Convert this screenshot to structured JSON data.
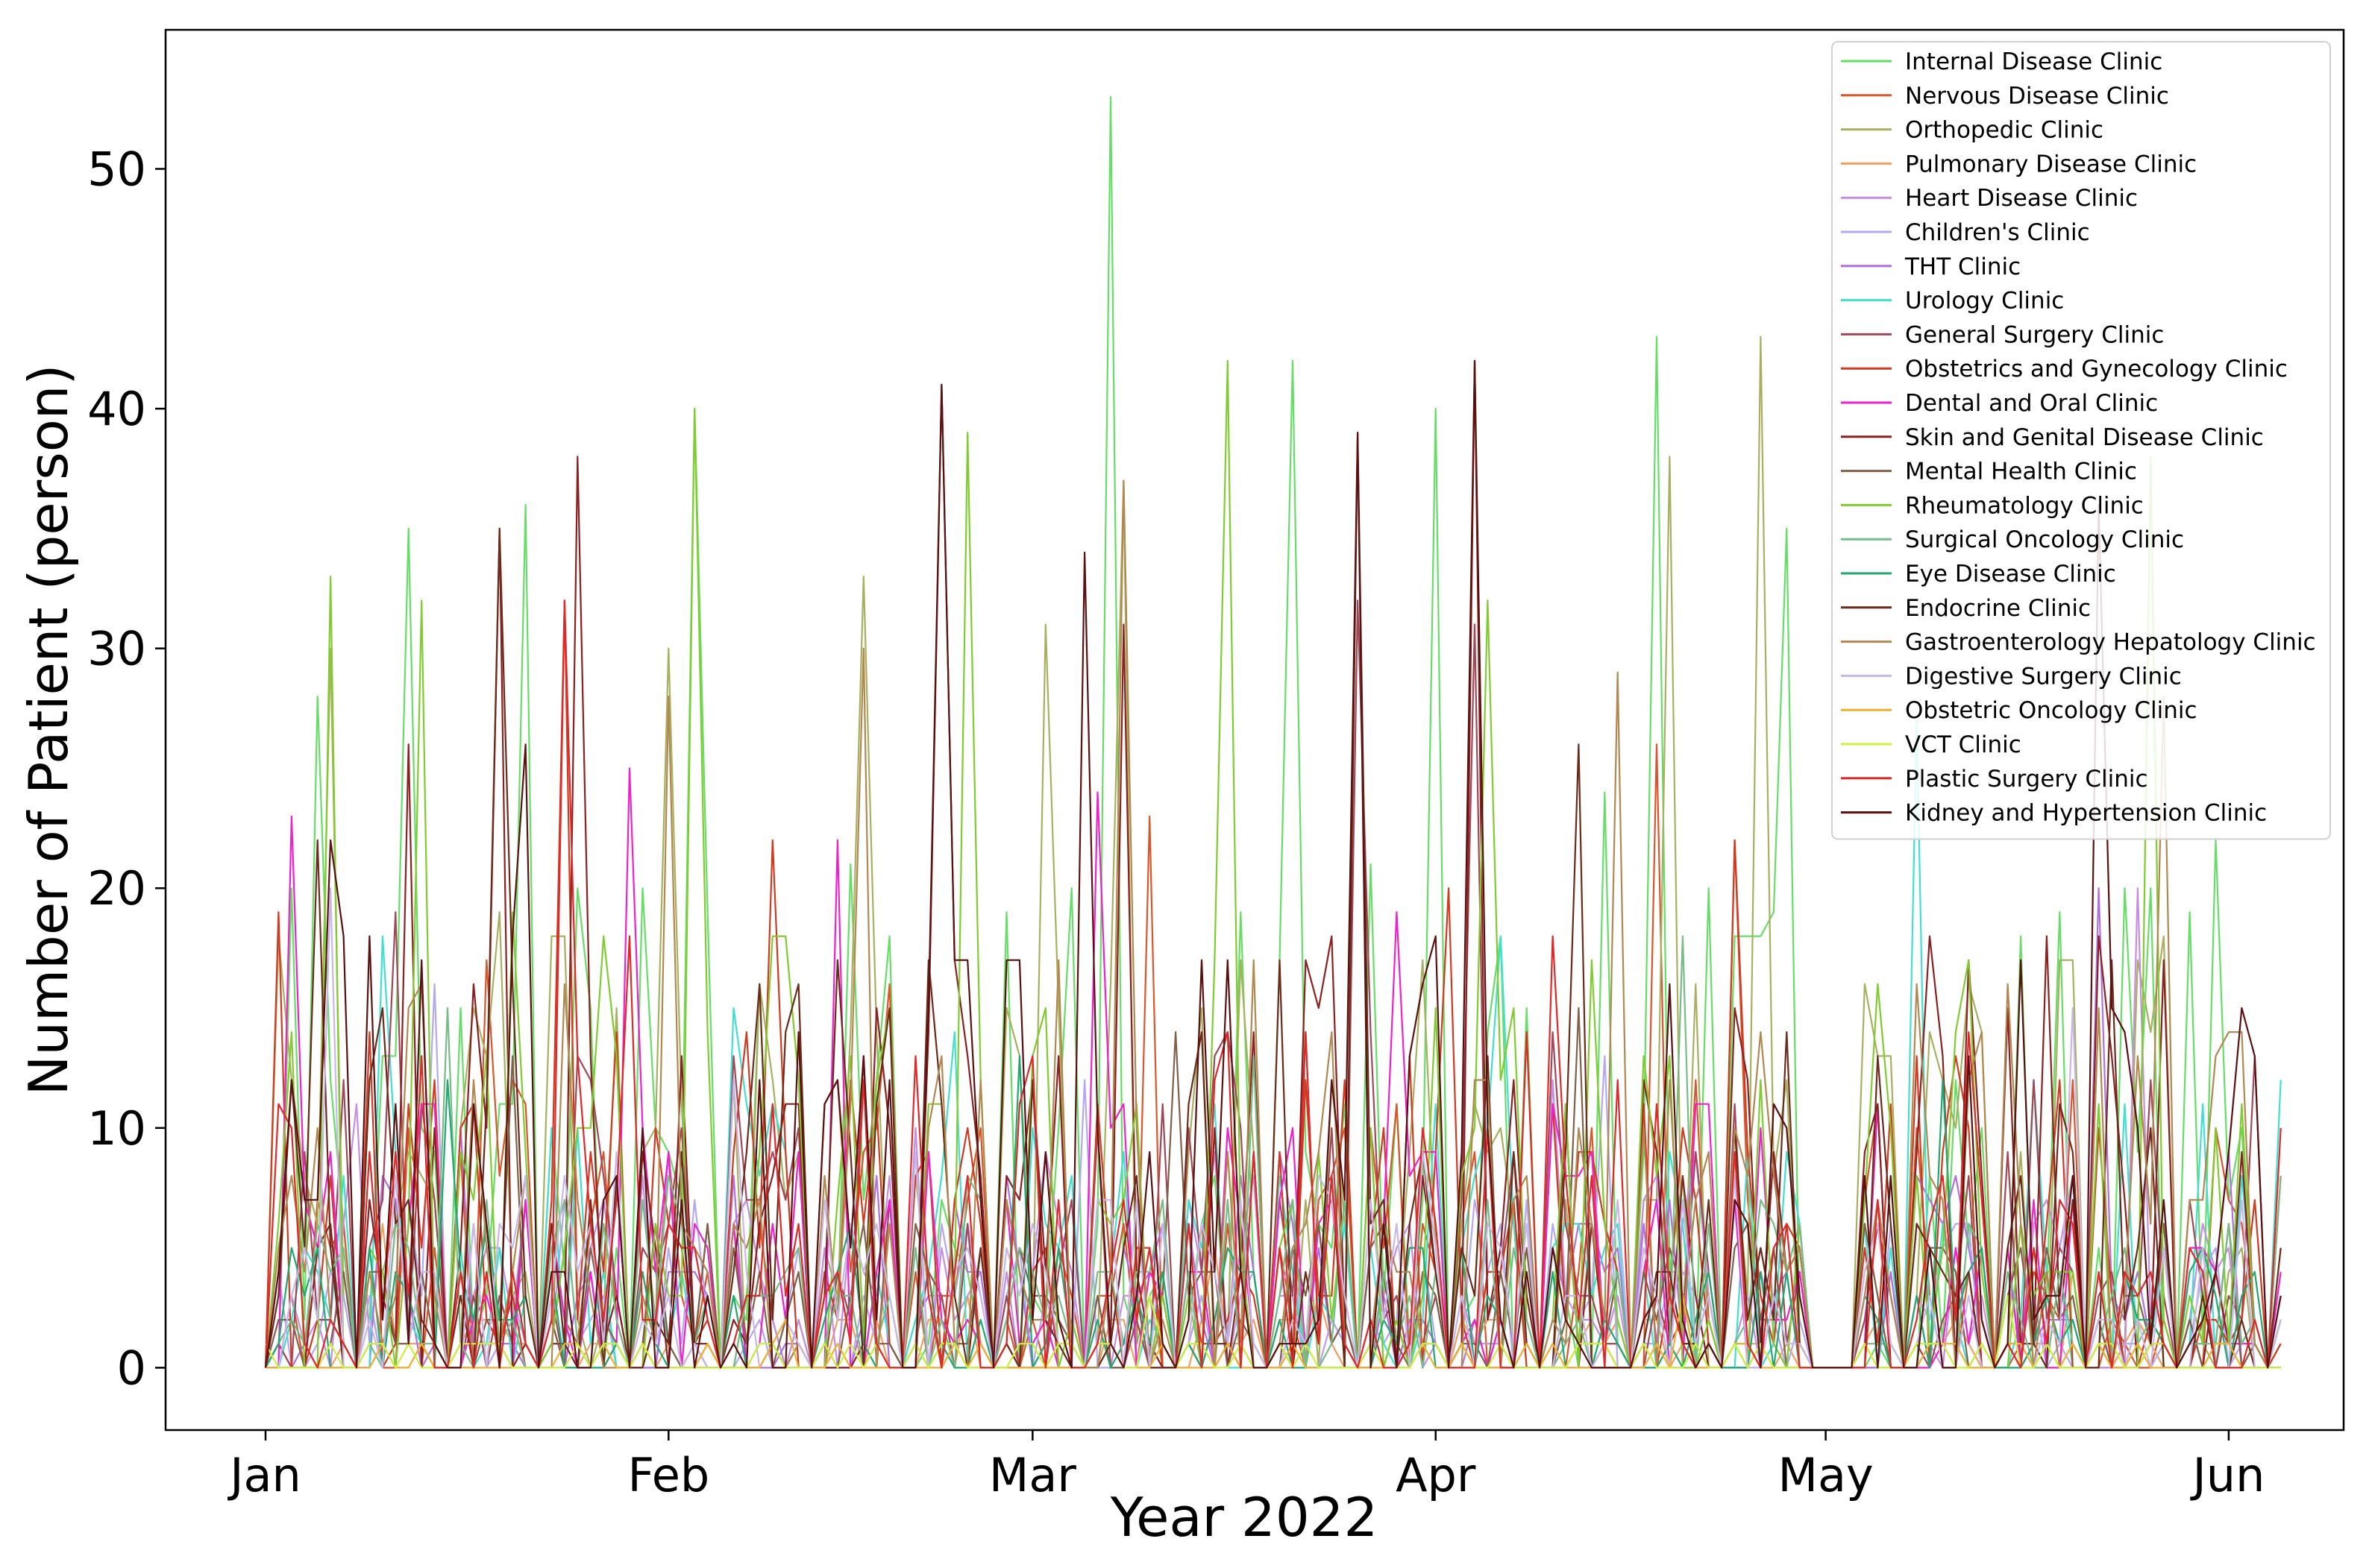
{
  "chart_data": {
    "type": "line",
    "title": "",
    "xlabel": "Year 2022",
    "ylabel": "Number of Patient (person)",
    "x_range": [
      "2022-01-01",
      "2022-06-05"
    ],
    "ylim": [
      -2.6,
      55.8
    ],
    "x_ticks": [
      {
        "date": "2022-01-01",
        "label": "Jan"
      },
      {
        "date": "2022-02-01",
        "label": "Feb"
      },
      {
        "date": "2022-03-01",
        "label": "Mar"
      },
      {
        "date": "2022-04-01",
        "label": "Apr"
      },
      {
        "date": "2022-05-01",
        "label": "May"
      },
      {
        "date": "2022-06-01",
        "label": "Jun"
      }
    ],
    "y_ticks": [
      0,
      10,
      20,
      30,
      40,
      50
    ],
    "grid": false,
    "legend_position": "top-right",
    "series": [
      {
        "name": "Internal Disease Clinic",
        "color": "#66dd66",
        "peaks": [
          [
            "2022-01-05",
            28
          ],
          [
            "2022-01-12",
            35
          ],
          [
            "2022-01-21",
            36
          ],
          [
            "2022-02-03",
            40
          ],
          [
            "2022-03-07",
            53
          ],
          [
            "2022-03-21",
            42
          ],
          [
            "2022-04-01",
            40
          ],
          [
            "2022-04-18",
            43
          ],
          [
            "2022-04-28",
            35
          ]
        ],
        "max": 53
      },
      {
        "name": "Nervous Disease Clinic",
        "color": "#d9552b",
        "peaks": [
          [
            "2022-01-18",
            17
          ],
          [
            "2022-02-18",
            16
          ],
          [
            "2022-03-10",
            23
          ],
          [
            "2022-04-18",
            26
          ],
          [
            "2022-04-24",
            22
          ]
        ],
        "max": 26
      },
      {
        "name": "Orthopedic Clinic",
        "color": "#a8b060",
        "peaks": [
          [
            "2022-01-06",
            30
          ],
          [
            "2022-02-01",
            30
          ],
          [
            "2022-02-16",
            33
          ],
          [
            "2022-03-02",
            31
          ],
          [
            "2022-03-08",
            37
          ],
          [
            "2022-04-19",
            38
          ],
          [
            "2022-04-26",
            43
          ],
          [
            "2022-05-05",
            13
          ]
        ],
        "max": 43
      },
      {
        "name": "Pulmonary Disease Clinic",
        "color": "#f0a060",
        "peaks": [
          [
            "2022-01-10",
            6
          ],
          [
            "2022-03-15",
            5
          ],
          [
            "2022-05-20",
            4
          ]
        ],
        "max": 6
      },
      {
        "name": "Heart Disease Clinic",
        "color": "#c78ee0",
        "peaks": [
          [
            "2022-01-08",
            11
          ],
          [
            "2022-02-20",
            10
          ],
          [
            "2022-04-10",
            12
          ],
          [
            "2022-05-25",
            20
          ]
        ],
        "max": 20
      },
      {
        "name": "Children's Clinic",
        "color": "#b5a8f0",
        "peaks": [
          [
            "2022-01-14",
            16
          ],
          [
            "2022-03-05",
            12
          ],
          [
            "2022-04-14",
            13
          ]
        ],
        "max": 16
      },
      {
        "name": "THT Clinic",
        "color": "#b070e0",
        "peaks": [
          [
            "2022-01-16",
            10
          ],
          [
            "2022-03-20",
            9
          ],
          [
            "2022-05-22",
            20
          ]
        ],
        "max": 20
      },
      {
        "name": "Urology Clinic",
        "color": "#40e0d0",
        "peaks": [
          [
            "2022-01-10",
            18
          ],
          [
            "2022-02-06",
            15
          ],
          [
            "2022-02-23",
            14
          ],
          [
            "2022-04-06",
            18
          ],
          [
            "2022-05-08",
            27
          ]
        ],
        "max": 27
      },
      {
        "name": "General Surgery Clinic",
        "color": "#a04858",
        "peaks": [
          [
            "2022-01-11",
            19
          ],
          [
            "2022-03-26",
            32
          ],
          [
            "2022-04-04",
            31
          ]
        ],
        "max": 32
      },
      {
        "name": "Obstetrics and Gynecology Clinic",
        "color": "#d03a20",
        "peaks": [
          [
            "2022-01-02",
            19
          ],
          [
            "2022-01-24",
            32
          ],
          [
            "2022-02-09",
            22
          ],
          [
            "2022-04-02",
            20
          ],
          [
            "2022-04-24",
            22
          ]
        ],
        "max": 32
      },
      {
        "name": "Dental and Oral Clinic",
        "color": "#ee22cc",
        "peaks": [
          [
            "2022-01-03",
            23
          ],
          [
            "2022-01-29",
            25
          ],
          [
            "2022-02-14",
            22
          ],
          [
            "2022-03-06",
            24
          ],
          [
            "2022-03-29",
            19
          ]
        ],
        "max": 25
      },
      {
        "name": "Skin and Genital Disease Clinic",
        "color": "#8b2020",
        "peaks": [
          [
            "2022-01-12",
            26
          ],
          [
            "2022-01-19",
            35
          ],
          [
            "2022-01-25",
            38
          ],
          [
            "2022-02-22",
            41
          ],
          [
            "2022-03-08",
            31
          ],
          [
            "2022-04-04",
            42
          ]
        ],
        "max": 42
      },
      {
        "name": "Mental Health Clinic",
        "color": "#806048",
        "peaks": [
          [
            "2022-01-20",
            13
          ],
          [
            "2022-03-12",
            14
          ],
          [
            "2022-04-12",
            15
          ]
        ],
        "max": 15
      },
      {
        "name": "Rheumatology Clinic",
        "color": "#80cc30",
        "peaks": [
          [
            "2022-01-06",
            33
          ],
          [
            "2022-01-13",
            32
          ],
          [
            "2022-02-03",
            40
          ],
          [
            "2022-02-24",
            39
          ],
          [
            "2022-03-16",
            42
          ],
          [
            "2022-04-05",
            32
          ],
          [
            "2022-05-26",
            38
          ]
        ],
        "max": 42
      },
      {
        "name": "Surgical Oncology Clinic",
        "color": "#77bb88",
        "peaks": [
          [
            "2022-01-15",
            15
          ],
          [
            "2022-03-18",
            13
          ],
          [
            "2022-04-20",
            18
          ]
        ],
        "max": 18
      },
      {
        "name": "Eye Disease Clinic",
        "color": "#20a870",
        "peaks": [
          [
            "2022-01-15",
            12
          ],
          [
            "2022-02-28",
            13
          ],
          [
            "2022-05-10",
            12
          ]
        ],
        "max": 13
      },
      {
        "name": "Endocrine Clinic",
        "color": "#6b2a1a",
        "peaks": [
          [
            "2022-01-05",
            22
          ],
          [
            "2022-01-19",
            35
          ],
          [
            "2022-02-21",
            17
          ],
          [
            "2022-03-26",
            39
          ],
          [
            "2022-04-12",
            26
          ]
        ],
        "max": 39
      },
      {
        "name": "Gastroenterology Hepatology Clinic",
        "color": "#b08850",
        "peaks": [
          [
            "2022-02-01",
            28
          ],
          [
            "2022-02-16",
            30
          ],
          [
            "2022-03-08",
            37
          ],
          [
            "2022-04-15",
            29
          ],
          [
            "2022-05-27",
            28
          ]
        ],
        "max": 37
      },
      {
        "name": "Digestive Surgery Clinic",
        "color": "#c8b8e8",
        "peaks": [
          [
            "2022-01-06",
            20
          ],
          [
            "2022-02-06",
            12
          ],
          [
            "2022-05-20",
            15
          ]
        ],
        "max": 20
      },
      {
        "name": "Obstetric Oncology Clinic",
        "color": "#f0b030",
        "peaks": [
          [
            "2022-02-10",
            2
          ],
          [
            "2022-04-20",
            3
          ]
        ],
        "max": 3
      },
      {
        "name": "VCT Clinic",
        "color": "#ccf040",
        "peaks": [
          [
            "2022-01-01",
            1
          ],
          [
            "2022-03-10",
            3
          ],
          [
            "2022-05-15",
            3
          ]
        ],
        "max": 3
      },
      {
        "name": "Plastic Surgery Clinic",
        "color": "#e02828",
        "peaks": [
          [
            "2022-01-24",
            32
          ],
          [
            "2022-01-29",
            18
          ],
          [
            "2022-04-10",
            18
          ],
          [
            "2022-05-05",
            7
          ]
        ],
        "max": 32
      },
      {
        "name": "Kidney and Hypertension Clinic",
        "color": "#5a1010",
        "peaks": [
          [
            "2022-01-06",
            22
          ],
          [
            "2022-01-21",
            26
          ],
          [
            "2022-02-22",
            41
          ],
          [
            "2022-03-05",
            34
          ],
          [
            "2022-03-26",
            39
          ],
          [
            "2022-04-04",
            42
          ],
          [
            "2022-05-22",
            36
          ]
        ],
        "max": 42
      }
    ],
    "gap": [
      "2022-04-30",
      "2022-05-03"
    ]
  }
}
